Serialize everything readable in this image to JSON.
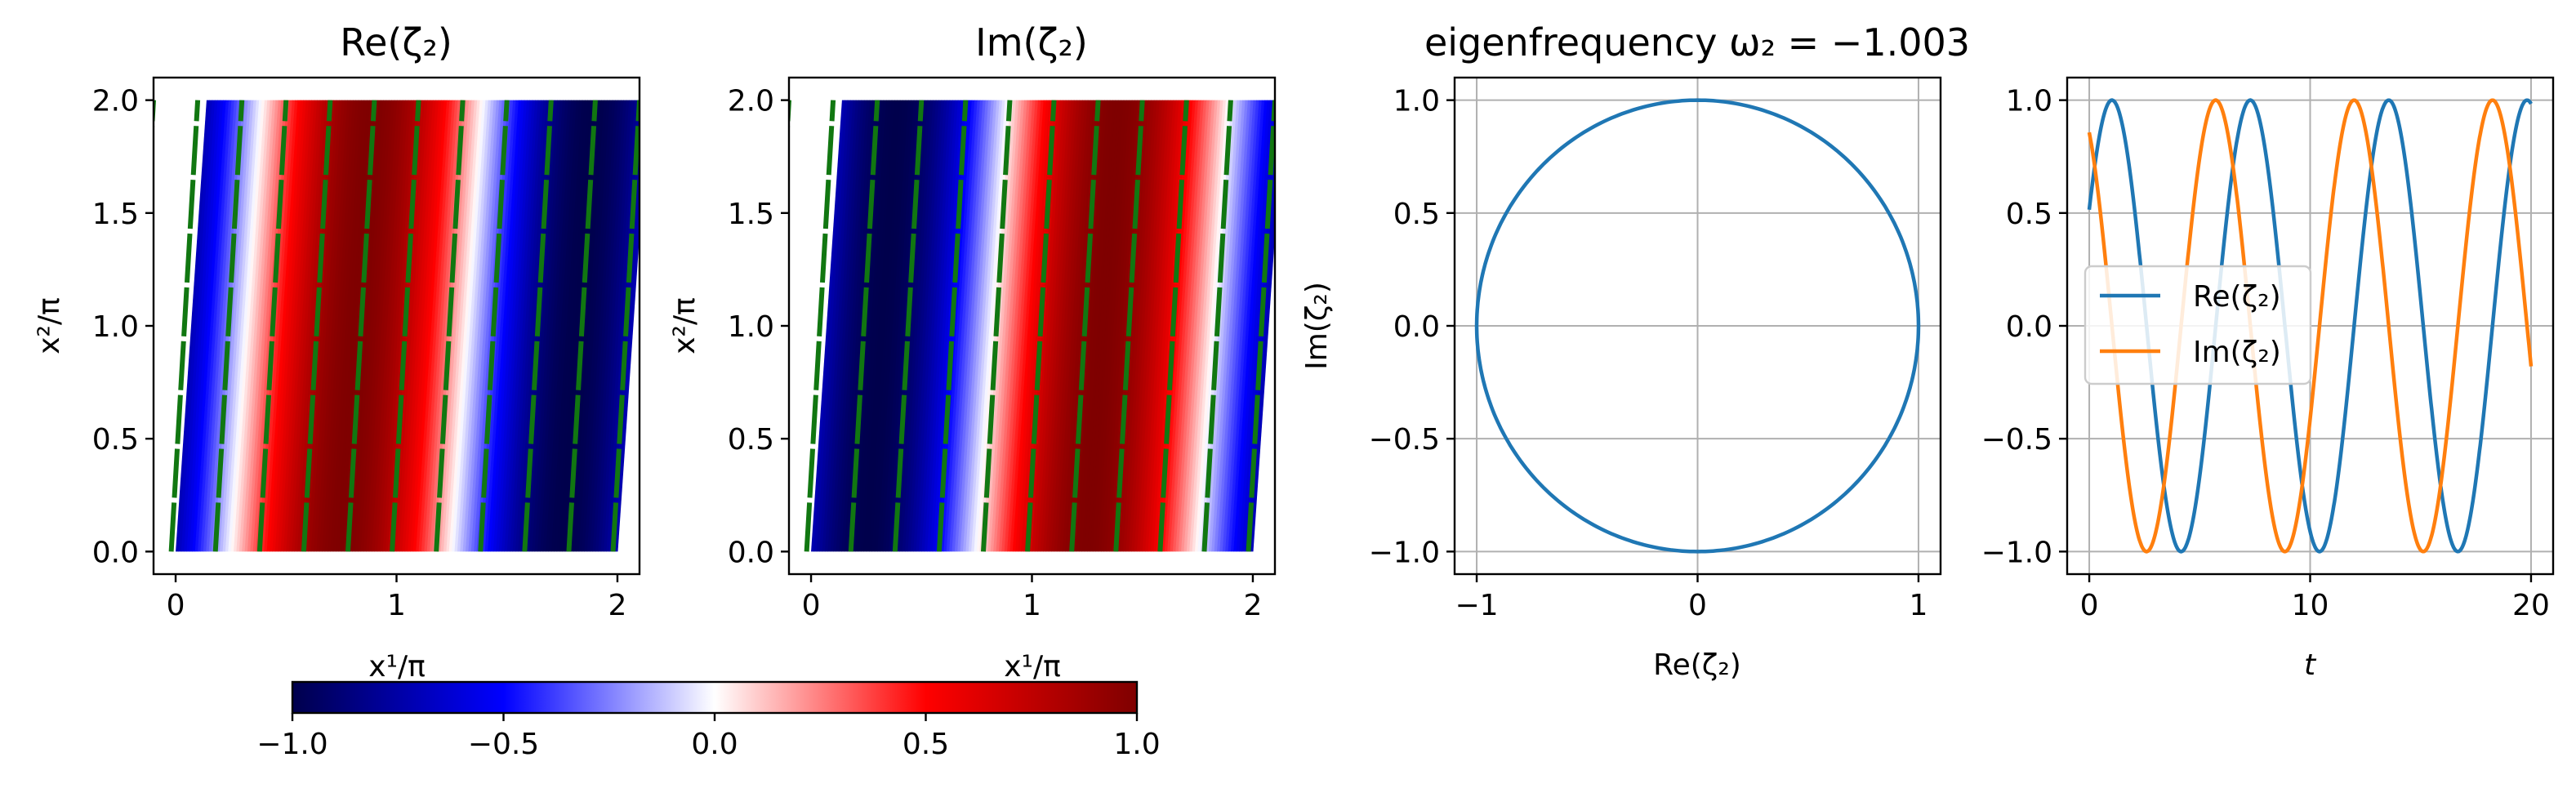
{
  "chart_data": [
    {
      "type": "heatmap",
      "title": "Re(ζ₂)",
      "xlabel": "x¹/π",
      "ylabel": "x²/π",
      "xlim": [
        -0.1,
        2.1
      ],
      "ylim": [
        -0.1,
        2.1
      ],
      "xticks": [
        "0",
        "1",
        "2"
      ],
      "yticks": [
        "0.0",
        "0.5",
        "1.0",
        "1.5",
        "2.0"
      ],
      "field": "cos",
      "phase_deg": 225,
      "colormap": "seismic",
      "contour_color": "#117711",
      "contour_line_count": 12
    },
    {
      "type": "heatmap",
      "title": "Im(ζ₂)",
      "xlabel": "x¹/π",
      "ylabel": "x²/π",
      "xlim": [
        -0.1,
        2.1
      ],
      "ylim": [
        -0.1,
        2.1
      ],
      "xticks": [
        "0",
        "1",
        "2"
      ],
      "yticks": [
        "0.0",
        "0.5",
        "1.0",
        "1.5",
        "2.0"
      ],
      "field": "sin",
      "phase_deg": 225,
      "colormap": "seismic",
      "contour_color": "#117711",
      "contour_line_count": 12
    },
    {
      "type": "line",
      "title": "eigenfrequency ω₂ = −1.003",
      "xlabel": "Re(ζ₂)",
      "ylabel": "Im(ζ₂)",
      "xlim": [
        -1.1,
        1.1
      ],
      "ylim": [
        -1.1,
        1.1
      ],
      "xticks": [
        -1,
        0,
        1
      ],
      "xtick_labels": [
        "−1",
        "0",
        "1"
      ],
      "yticks": [
        -1.0,
        -0.5,
        0.0,
        0.5,
        1.0
      ],
      "ytick_labels": [
        "−1.0",
        "−0.5",
        "0.0",
        "0.5",
        "1.0"
      ],
      "grid": true,
      "curve": "unit circle",
      "color": "#1f77b4"
    },
    {
      "type": "line",
      "xlabel": "t",
      "xlim": [
        -1,
        21
      ],
      "ylim": [
        -1.1,
        1.1
      ],
      "xticks": [
        0,
        10,
        20
      ],
      "xtick_labels": [
        "0",
        "10",
        "20"
      ],
      "yticks": [
        -1.0,
        -0.5,
        0.0,
        0.5,
        1.0
      ],
      "ytick_labels": [
        "−1.0",
        "−0.5",
        "0.0",
        "0.5",
        "1.0"
      ],
      "grid": true,
      "legend": "center-left",
      "omega": -1.003,
      "t_range": [
        0,
        20
      ],
      "series": [
        {
          "name": "Re(ζ₂)",
          "function": "cos(ω t + 1.03)",
          "color": "#1f77b4"
        },
        {
          "name": "Im(ζ₂)",
          "function": "sin(ω t + 1.03)",
          "color": "#ff7f0e"
        }
      ]
    }
  ],
  "colorbar": {
    "min": -1.0,
    "max": 1.0,
    "ticks": [
      -1.0,
      -0.5,
      0.0,
      0.5,
      1.0
    ],
    "tick_labels": [
      "−1.0",
      "−0.5",
      "0.0",
      "0.5",
      "1.0"
    ]
  }
}
